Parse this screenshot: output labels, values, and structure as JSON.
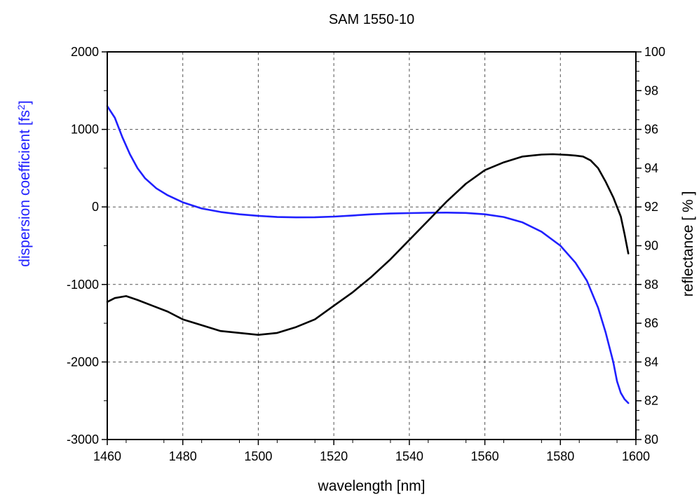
{
  "chart_data": {
    "type": "line",
    "title": "SAM 1550-10",
    "xlabel": "wavelength [nm]",
    "ylabel_left_text": "dispersion coefficient [fs",
    "ylabel_left_sup": "2",
    "ylabel_left_close": "]",
    "ylabel_right": "reflectance [ % ]",
    "xlim": [
      1460,
      1600
    ],
    "ylim_left": [
      -3000,
      2000
    ],
    "ylim_right": [
      80,
      100
    ],
    "xticks": [
      1460,
      1480,
      1500,
      1520,
      1540,
      1560,
      1580,
      1600
    ],
    "xtick_labels": [
      "1460",
      "1480",
      "1500",
      "1520",
      "1540",
      "1560",
      "1580",
      "1600"
    ],
    "yticks_left": [
      -3000,
      -2000,
      -1000,
      0,
      1000,
      2000
    ],
    "ytick_labels_left": [
      "-3000",
      "-2000",
      "-1000",
      "0",
      "1000",
      "2000"
    ],
    "yticks_right": [
      80,
      82,
      84,
      86,
      88,
      90,
      92,
      94,
      96,
      98,
      100
    ],
    "ytick_labels_right": [
      "80",
      "82",
      "84",
      "86",
      "88",
      "90",
      "92",
      "94",
      "96",
      "98",
      "100"
    ],
    "grid": true,
    "colors": {
      "dispersion": "#2020ff",
      "reflectance": "#000000",
      "grid": "#555555",
      "axis": "#000000"
    },
    "series": [
      {
        "axis": "left",
        "x": [
          1460,
          1462,
          1464,
          1466,
          1468,
          1470,
          1473,
          1476,
          1480,
          1485,
          1490,
          1495,
          1500,
          1505,
          1510,
          1515,
          1520,
          1525,
          1530,
          1535,
          1540,
          1545,
          1550,
          1555,
          1560,
          1565,
          1570,
          1575,
          1580,
          1584,
          1587,
          1590,
          1592,
          1594,
          1595,
          1596,
          1597,
          1598
        ],
        "y": [
          1300,
          1150,
          900,
          680,
          500,
          370,
          240,
          150,
          60,
          -20,
          -65,
          -95,
          -115,
          -130,
          -135,
          -133,
          -125,
          -110,
          -95,
          -85,
          -80,
          -75,
          -73,
          -78,
          -95,
          -130,
          -200,
          -320,
          -500,
          -720,
          -950,
          -1300,
          -1620,
          -2000,
          -2250,
          -2400,
          -2480,
          -2530
        ]
      },
      {
        "axis": "right",
        "x": [
          1460,
          1462,
          1465,
          1468,
          1472,
          1476,
          1480,
          1485,
          1490,
          1495,
          1500,
          1505,
          1510,
          1515,
          1520,
          1525,
          1530,
          1535,
          1540,
          1545,
          1550,
          1555,
          1560,
          1565,
          1570,
          1575,
          1578,
          1580,
          1582,
          1584,
          1586,
          1588,
          1590,
          1592,
          1594,
          1596,
          1597,
          1598
        ],
        "y": [
          87.1,
          87.3,
          87.4,
          87.2,
          86.9,
          86.6,
          86.2,
          85.9,
          85.6,
          85.5,
          85.4,
          85.5,
          85.8,
          86.2,
          86.9,
          87.6,
          88.4,
          89.3,
          90.3,
          91.3,
          92.3,
          93.2,
          93.9,
          94.3,
          94.6,
          94.7,
          94.72,
          94.7,
          94.68,
          94.65,
          94.6,
          94.4,
          94.0,
          93.3,
          92.5,
          91.5,
          90.6,
          89.6
        ]
      }
    ]
  }
}
